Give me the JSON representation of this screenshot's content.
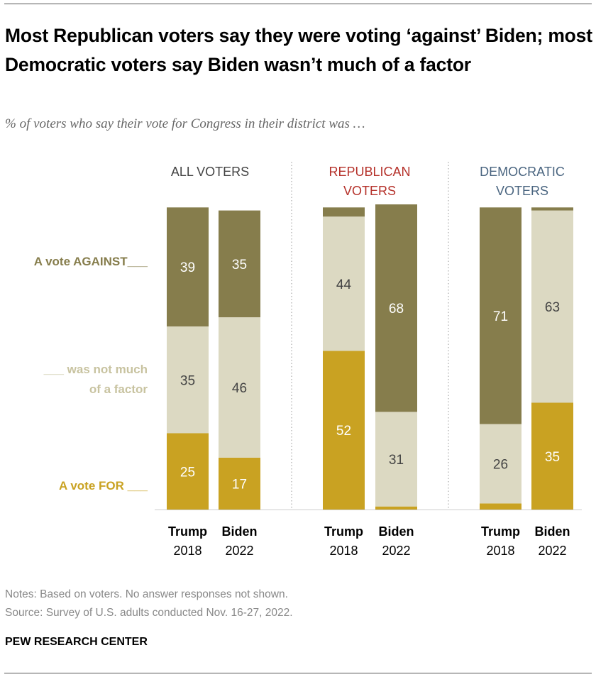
{
  "title": "Most Republican voters say they were voting ‘against’ Biden; most Democratic voters say Biden wasn’t much of a factor",
  "subtitle": "% of voters who say their vote for Congress in their district was …",
  "notes": "Notes: Based on voters. No answer responses not shown.",
  "source": "Source: Survey of U.S. adults conducted Nov. 16-27, 2022.",
  "brand": "PEW RESEARCH CENTER",
  "colors": {
    "against": "#867d4c",
    "not_much": "#dcd9c2",
    "for": "#c9a222",
    "header_all": "#444444",
    "header_rep": "#b5312a",
    "header_dem": "#4a6580",
    "label_not_much": "#c8c3a0"
  },
  "chart_data": {
    "type": "bar",
    "stacked": true,
    "title": "Most Republican voters say they were voting ‘against’ Biden; most Democratic voters say Biden wasn’t much of a factor",
    "groups": [
      {
        "name": "ALL VOTERS",
        "lines": [
          "ALL VOTERS"
        ]
      },
      {
        "name": "REPUBLICAN VOTERS",
        "lines": [
          "REPUBLICAN",
          "VOTERS"
        ]
      },
      {
        "name": "DEMOCRATIC VOTERS",
        "lines": [
          "DEMOCRATIC",
          "VOTERS"
        ]
      }
    ],
    "categories": [
      {
        "name": "Trump",
        "year": "2018"
      },
      {
        "name": "Biden",
        "year": "2022"
      }
    ],
    "series": [
      {
        "name": "A vote FOR ___",
        "lines": [
          "A vote FOR ___"
        ],
        "values": [
          [
            25,
            17
          ],
          [
            52,
            1
          ],
          [
            2,
            35
          ]
        ],
        "labels": [
          [
            "25",
            "17"
          ],
          [
            "52",
            ""
          ],
          [
            "",
            "35"
          ]
        ]
      },
      {
        "name": "___ was not much of a factor",
        "lines": [
          "___ was not much",
          "of a factor"
        ],
        "values": [
          [
            35,
            46
          ],
          [
            44,
            31
          ],
          [
            26,
            63
          ]
        ],
        "labels": [
          [
            "35",
            "46"
          ],
          [
            "44",
            "31"
          ],
          [
            "26",
            "63"
          ]
        ]
      },
      {
        "name": "A vote AGAINST___",
        "lines": [
          "A vote AGAINST___"
        ],
        "values": [
          [
            39,
            35
          ],
          [
            3,
            68
          ],
          [
            71,
            1
          ]
        ],
        "labels": [
          [
            "39",
            "35"
          ],
          [
            "",
            "68"
          ],
          [
            "71",
            ""
          ]
        ]
      }
    ],
    "ylim": [
      0,
      100
    ]
  }
}
